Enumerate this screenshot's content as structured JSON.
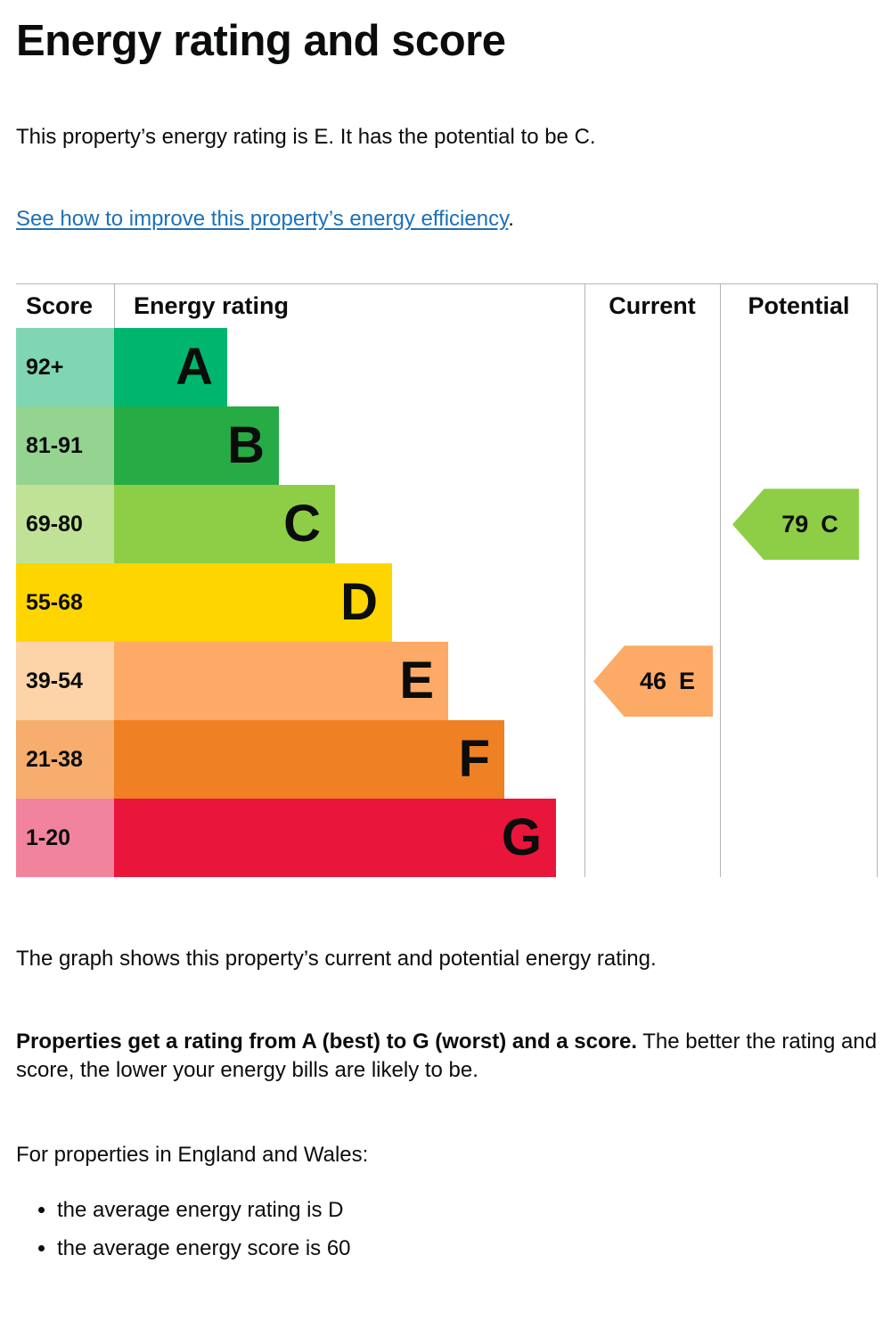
{
  "page": {
    "title": "Energy rating and score",
    "intro": "This property’s energy rating is E. It has the potential to be C.",
    "link_text": "See how to improve this property’s energy efficiency",
    "link_suffix": ".",
    "graph_caption": "The graph shows this property’s current and potential energy rating.",
    "ratings_bold": "Properties get a rating from A (best) to G (worst) and a score.",
    "ratings_rest": " The better the rating and score, the lower your energy bills are likely to be.",
    "region_heading": "For properties in England and Wales:",
    "bullets": [
      "the average energy rating is D",
      "the average energy score is 60"
    ]
  },
  "chart_data": {
    "type": "bar",
    "title": "Energy rating and score",
    "columns": [
      "Score",
      "Energy rating",
      "Current",
      "Potential"
    ],
    "bands": [
      {
        "rating": "A",
        "score_range": "92+",
        "color": "#00b66e",
        "tint": "#80d5b2",
        "bar_pct": 24
      },
      {
        "rating": "B",
        "score_range": "81-91",
        "color": "#27ab45",
        "tint": "#94d490",
        "bar_pct": 35
      },
      {
        "rating": "C",
        "score_range": "69-80",
        "color": "#8dce46",
        "tint": "#c0e296",
        "bar_pct": 47
      },
      {
        "rating": "D",
        "score_range": "55-68",
        "color": "#ffd500",
        "tint": "#ffd500",
        "bar_pct": 59
      },
      {
        "rating": "E",
        "score_range": "39-54",
        "color": "#fcaa65",
        "tint": "#fdd4a7",
        "bar_pct": 71
      },
      {
        "rating": "F",
        "score_range": "21-38",
        "color": "#ef8023",
        "tint": "#f6ad6d",
        "bar_pct": 83
      },
      {
        "rating": "G",
        "score_range": "1-20",
        "color": "#e9153b",
        "tint": "#f2839f",
        "bar_pct": 94
      }
    ],
    "current": {
      "score": 46,
      "rating": "E",
      "color": "#fcaa65",
      "band_index": 4
    },
    "potential": {
      "score": 79,
      "rating": "C",
      "color": "#8dce46",
      "band_index": 2
    },
    "grid": false,
    "divider_color": "#b1b4b6"
  }
}
